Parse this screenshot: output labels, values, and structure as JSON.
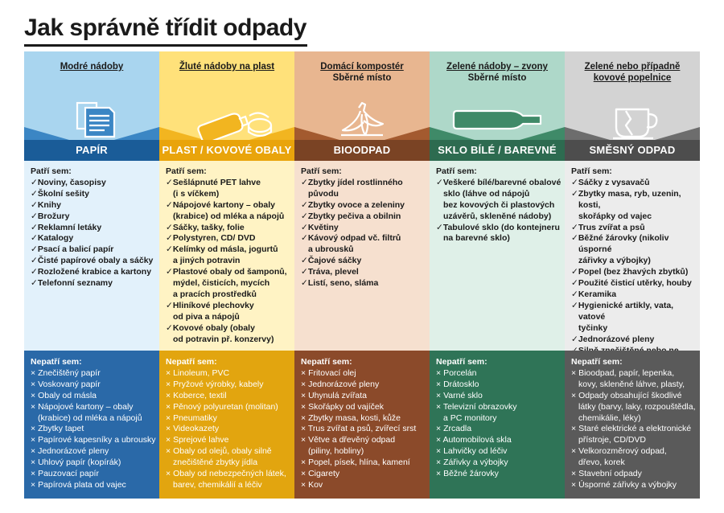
{
  "title": "Jak správně třídit odpady",
  "columns": [
    {
      "header": [
        "Modré nádoby"
      ],
      "icon": "paper-documents-icon",
      "label": "PAPÍR",
      "yes_title": "Patří sem:",
      "yes": [
        "Noviny, časopisy",
        "Školní sešity",
        "Knihy",
        "Brožury",
        "Reklamní letáky",
        "Katalogy",
        "Psací a balicí papír",
        "Čisté papírové obaly a sáčky",
        "Rozložené krabice a kartony",
        "Telefonní seznamy"
      ],
      "no_title": "Nepatří sem:",
      "no": [
        "Znečištěný papír",
        "Voskovaný papír",
        "Obaly od másla",
        "Nápojové kartony – obaly\n(krabice) od mléka a nápojů",
        "Zbytky tapet",
        "Papírové kapesníky a ubrousky",
        "Jednorázové pleny",
        "Uhlový papír (kopírák)",
        "Pauzovací papír",
        "Papírová plata od vajec"
      ]
    },
    {
      "header": [
        "Žluté nádoby na plast"
      ],
      "icon": "plastic-bottle-can-icon",
      "label": "PLAST / KOVOVÉ OBALY",
      "yes_title": "Patří sem:",
      "yes": [
        "Sešlápnuté PET lahve\n(i s víčkem)",
        "Nápojové kartony – obaly\n(krabice) od mléka a nápojů",
        "Sáčky, tašky, folie",
        "Polystyren, CD/ DVD",
        "Kelímky od másla, jogurtů\na jiných potravin",
        "Plastové obaly od šamponů,\nmýdel, čisticích, mycích\na pracích prostředků",
        "Hliníkové plechovky\nod piva a nápojů",
        "Kovové obaly (obaly\nod potravin př. konzervy)"
      ],
      "no_title": "Nepatří sem:",
      "no": [
        "Linoleum, PVC",
        "Pryžové výrobky, kabely",
        "Koberce, textil",
        "Pěnový polyuretan (molitan)",
        "Pneumatiky",
        "Videokazety",
        "Sprejové lahve",
        "Obaly od olejů, obaly silně\nznečištěné zbytky jídla",
        "Obaly od nebezpečných látek,\nbarev, chemikálií a léčiv"
      ]
    },
    {
      "header": [
        "Domácí kompostér",
        "Sběrné místo"
      ],
      "icon": "banana-peel-icon",
      "label": "BIOODPAD",
      "yes_title": "Patří sem:",
      "yes": [
        "Zbytky jídel rostlinného původu",
        "Zbytky ovoce a zeleniny",
        "Zbytky pečiva a obilnin",
        "Květiny",
        "Kávový odpad vč. filtrů\na ubrousků",
        "Čajové sáčky",
        "Tráva, plevel",
        "Listí, seno, sláma"
      ],
      "no_title": "Nepatří sem:",
      "no": [
        "Fritovací olej",
        "Jednorázové pleny",
        "Uhynulá zvířata",
        "Skořápky od vajíček",
        "Zbytky masa, kosti, kůže",
        "Trus zvířat a psů, zvířecí srst",
        "Větve a dřevěný odpad\n(piliny, hobliny)",
        "Popel, písek, hlína, kamení",
        "Cigarety",
        "Kov"
      ]
    },
    {
      "header": [
        "Zelené nádoby – zvony",
        "Sběrné místo"
      ],
      "icon": "glass-bottle-icon",
      "label": "SKLO BÍLÉ / BAREVNÉ",
      "yes_title": "Patří sem:",
      "yes": [
        "Veškeré bílé/barevné obalové\nsklo (láhve od nápojů\nbez kovových či plastových\nuzávěrů, skleněné nádoby)",
        "Tabulové sklo (do kontejneru\nna barevné sklo)"
      ],
      "no_title": "Nepatří sem:",
      "no": [
        "Porcelán",
        "Drátosklo",
        "Varné sklo",
        "Televizní obrazovky\na PC monitory",
        "Zrcadla",
        "Automobilová skla",
        "Lahvičky od léčiv",
        "Zářivky a výbojky",
        "Běžné žárovky"
      ]
    },
    {
      "header": [
        "Zelené nebo případně",
        "kovové popelnice"
      ],
      "icon": "broken-cup-icon",
      "label": "SMĚSNÝ ODPAD",
      "yes_title": "Patří sem:",
      "yes": [
        "Sáčky z vysavačů",
        "Zbytky masa, ryb, uzenin, kosti,\nskořápky od vajec",
        "Trus zvířat a psů",
        "Běžné žárovky (nikoliv úsporné\nzářivky a výbojky)",
        "Popel (bez žhavých zbytků)",
        "Použité čisticí utěrky, houby",
        "Keramika",
        "Hygienické artikly, vata, vatové\ntyčinky",
        "Jednorázové pleny",
        "Silně znečištěné nebo ne zcela\nvyprázdněné obaly"
      ],
      "no_title": "Nepatří sem:",
      "no": [
        "Bioodpad, papír, lepenka,\nkovy, skleněné láhve, plasty,",
        "Odpady obsahující škodlivé\nlátky (barvy, laky, rozpouštědla,\nchemikálie, léky)",
        "Staré elektrické a elektronické\npřístroje, CD/DVD",
        "Velkorozměrový odpad,\ndřevo, korek",
        "Stavební odpady",
        "Úsporné zářivky a výbojky"
      ]
    }
  ]
}
